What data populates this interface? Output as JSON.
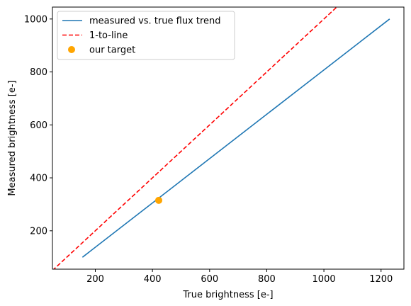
{
  "chart_data": {
    "type": "line",
    "xlabel": "True brightness [e-]",
    "ylabel": "Measured brightness [e-]",
    "xlim": [
      50,
      1280
    ],
    "ylim": [
      55,
      1045
    ],
    "x_ticks": [
      200,
      400,
      600,
      800,
      1000,
      1200
    ],
    "y_ticks": [
      200,
      400,
      600,
      800,
      1000
    ],
    "grid": false,
    "legend_position": "top-left",
    "series": [
      {
        "name": "measured vs. true flux trend",
        "style": "solid",
        "color": "#1f77b4",
        "x": [
          155,
          1230
        ],
        "y": [
          100,
          1000
        ]
      },
      {
        "name": "1-to-line",
        "style": "dashed",
        "color": "#ff0000",
        "x": [
          50,
          1050
        ],
        "y": [
          50,
          1050
        ]
      }
    ],
    "points": [
      {
        "name": "our target",
        "color": "#ffa500",
        "x": 422,
        "y": 315
      }
    ]
  }
}
